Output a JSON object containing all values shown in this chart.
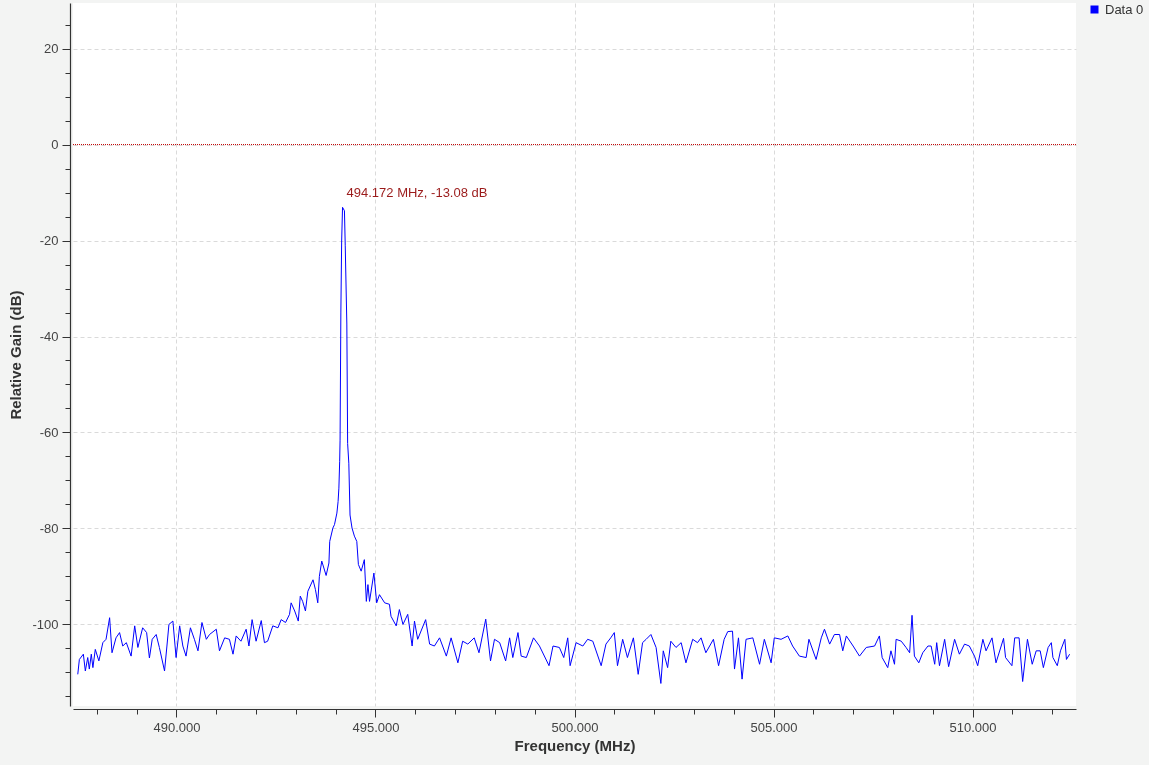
{
  "chart_data": {
    "type": "line",
    "xlabel": "Frequency (MHz)",
    "ylabel": "Relative Gain (dB)",
    "xlim": [
      487.4,
      512.6
    ],
    "ylim": [
      -117,
      29.5
    ],
    "xticks": [
      {
        "value": 488,
        "label": null
      },
      {
        "value": 489,
        "label": null
      },
      {
        "value": 490,
        "label": "490.000"
      },
      {
        "value": 491,
        "label": null
      },
      {
        "value": 492,
        "label": null
      },
      {
        "value": 493,
        "label": null
      },
      {
        "value": 494,
        "label": null
      },
      {
        "value": 495,
        "label": "495.000"
      },
      {
        "value": 496,
        "label": null
      },
      {
        "value": 497,
        "label": null
      },
      {
        "value": 498,
        "label": null
      },
      {
        "value": 499,
        "label": null
      },
      {
        "value": 500,
        "label": "500.000"
      },
      {
        "value": 501,
        "label": null
      },
      {
        "value": 502,
        "label": null
      },
      {
        "value": 503,
        "label": null
      },
      {
        "value": 504,
        "label": null
      },
      {
        "value": 505,
        "label": "505.000"
      },
      {
        "value": 506,
        "label": null
      },
      {
        "value": 507,
        "label": null
      },
      {
        "value": 508,
        "label": null
      },
      {
        "value": 509,
        "label": null
      },
      {
        "value": 510,
        "label": "510.000"
      },
      {
        "value": 511,
        "label": null
      },
      {
        "value": 512,
        "label": null
      }
    ],
    "yticks": [
      {
        "value": -115,
        "label": null
      },
      {
        "value": -110,
        "label": null
      },
      {
        "value": -105,
        "label": null
      },
      -100,
      {
        "value": -95,
        "label": null
      },
      {
        "value": -90,
        "label": null
      },
      {
        "value": -85,
        "label": null
      },
      -80,
      {
        "value": -75,
        "label": null
      },
      {
        "value": -70,
        "label": null
      },
      {
        "value": -65,
        "label": null
      },
      -60,
      {
        "value": -55,
        "label": null
      },
      {
        "value": -50,
        "label": null
      },
      {
        "value": -45,
        "label": null
      },
      -40,
      {
        "value": -35,
        "label": null
      },
      {
        "value": -30,
        "label": null
      },
      {
        "value": -25,
        "label": null
      },
      -20,
      {
        "value": -15,
        "label": null
      },
      {
        "value": -10,
        "label": null
      },
      {
        "value": -5,
        "label": null
      },
      0,
      {
        "value": 5,
        "label": null
      },
      {
        "value": 10,
        "label": null
      },
      {
        "value": 15,
        "label": null
      },
      20,
      {
        "value": 25,
        "label": null
      }
    ],
    "grid": true,
    "legend": "top right",
    "ref_lines": [
      {
        "axis": "y",
        "value": 0,
        "color": "#c00000",
        "line_style": "dotted"
      }
    ],
    "annotations": [
      {
        "text": "494.172 MHz, -13.08 dB",
        "x": 494.172,
        "y": -13.08
      }
    ],
    "x": [
      487.52,
      487.56,
      487.66,
      487.71,
      487.77,
      487.81,
      487.86,
      487.9,
      487.96,
      488.05,
      488.15,
      488.23,
      488.32,
      488.38,
      488.48,
      488.57,
      488.65,
      488.74,
      488.86,
      488.95,
      489.03,
      489.15,
      489.25,
      489.32,
      489.39,
      489.49,
      489.57,
      489.7,
      489.76,
      489.81,
      489.91,
      489.99,
      490.08,
      490.16,
      490.24,
      490.35,
      490.45,
      490.54,
      490.64,
      490.75,
      490.83,
      491.0,
      491.08,
      491.21,
      491.33,
      491.42,
      491.5,
      491.62,
      491.75,
      491.82,
      491.9,
      492.0,
      492.13,
      492.21,
      492.29,
      492.42,
      492.55,
      492.63,
      492.74,
      492.84,
      492.88,
      492.97,
      493.06,
      493.11,
      493.17,
      493.24,
      493.3,
      493.43,
      493.49,
      493.55,
      493.59,
      493.65,
      493.76,
      493.83,
      493.85,
      493.93,
      493.97,
      494.03,
      494.06,
      494.08,
      494.1,
      494.11,
      494.13,
      494.15,
      494.172,
      494.22,
      494.24,
      494.28,
      494.3,
      494.33,
      494.36,
      494.41,
      494.47,
      494.53,
      494.57,
      494.64,
      494.72,
      494.77,
      494.81,
      494.85,
      494.96,
      495.03,
      495.1,
      495.23,
      495.35,
      495.39,
      495.52,
      495.6,
      495.69,
      495.81,
      495.92,
      495.98,
      496.06,
      496.26,
      496.36,
      496.48,
      496.61,
      496.78,
      496.9,
      497.07,
      497.19,
      497.32,
      497.48,
      497.6,
      497.77,
      497.89,
      497.99,
      498.12,
      498.27,
      498.37,
      498.45,
      498.58,
      498.66,
      498.79,
      498.97,
      499.12,
      499.36,
      499.46,
      499.62,
      499.73,
      499.83,
      499.89,
      500.04,
      500.21,
      500.33,
      500.46,
      500.67,
      500.79,
      500.91,
      501.0,
      501.08,
      501.21,
      501.33,
      501.48,
      501.6,
      501.71,
      501.8,
      501.92,
      502.05,
      502.17,
      502.23,
      502.34,
      502.42,
      502.55,
      502.68,
      502.8,
      502.97,
      503.09,
      503.18,
      503.3,
      503.49,
      503.62,
      503.76,
      503.85,
      503.97,
      504.02,
      504.12,
      504.21,
      504.31,
      504.48,
      504.65,
      504.77,
      504.94,
      505.02,
      505.19,
      505.36,
      505.48,
      505.65,
      505.82,
      505.89,
      506.07,
      506.2,
      506.28,
      506.41,
      506.53,
      506.66,
      506.74,
      506.83,
      507.0,
      507.16,
      507.33,
      507.54,
      507.66,
      507.73,
      507.87,
      507.95,
      508.04,
      508.08,
      508.21,
      508.33,
      508.42,
      508.48,
      508.54,
      508.65,
      508.75,
      508.88,
      508.96,
      509.05,
      509.1,
      509.17,
      509.3,
      509.4,
      509.55,
      509.67,
      509.8,
      509.92,
      510.05,
      510.13,
      510.26,
      510.34,
      510.49,
      510.59,
      510.78,
      510.83,
      510.99,
      511.06,
      511.17,
      511.26,
      511.38,
      511.5,
      511.6,
      511.7,
      511.78,
      511.9,
      511.98,
      512.02,
      512.13,
      512.21,
      512.32,
      512.36,
      512.44
    ],
    "series": [
      {
        "name": "Data 0",
        "color": "#0000ff",
        "values": [
          -110.4,
          -107.3,
          -106.2,
          -109.7,
          -106.9,
          -109.3,
          -106.2,
          -109.0,
          -105.2,
          -107.6,
          -103.8,
          -103.1,
          -98.6,
          -105.9,
          -102.8,
          -101.7,
          -104.5,
          -103.8,
          -106.6,
          -100.3,
          -104.8,
          -100.7,
          -101.7,
          -107.0,
          -103.1,
          -102.1,
          -104.8,
          -109.7,
          -104.5,
          -100.0,
          -99.3,
          -106.9,
          -100.3,
          -104.5,
          -106.6,
          -100.7,
          -103.1,
          -105.5,
          -99.6,
          -103.1,
          -102.1,
          -101.0,
          -105.5,
          -102.8,
          -103.1,
          -106.2,
          -102.4,
          -103.5,
          -101.0,
          -104.5,
          -99.0,
          -103.5,
          -99.2,
          -103.8,
          -103.5,
          -100.3,
          -100.7,
          -99.0,
          -99.6,
          -97.9,
          -95.5,
          -97.2,
          -99.3,
          -94.1,
          -95.2,
          -97.2,
          -93.1,
          -90.7,
          -92.7,
          -95.5,
          -90.0,
          -86.8,
          -89.8,
          -87.2,
          -82.7,
          -79.9,
          -79.2,
          -76.8,
          -74.4,
          -71.6,
          -66.1,
          -61.6,
          -34.9,
          -20.1,
          -13.08,
          -13.8,
          -21.1,
          -37.4,
          -62.3,
          -66.4,
          -77.2,
          -79.9,
          -81.6,
          -82.7,
          -87.5,
          -88.9,
          -86.5,
          -95.2,
          -91.7,
          -95.2,
          -89.3,
          -95.5,
          -93.8,
          -95.5,
          -95.8,
          -98.3,
          -100.3,
          -96.9,
          -100.0,
          -97.9,
          -104.5,
          -99.3,
          -103.1,
          -99.0,
          -104.1,
          -104.5,
          -102.8,
          -106.6,
          -102.8,
          -108.0,
          -103.5,
          -104.1,
          -102.8,
          -105.9,
          -98.9,
          -107.6,
          -103.1,
          -103.8,
          -107.6,
          -102.8,
          -106.9,
          -101.7,
          -106.6,
          -106.9,
          -102.8,
          -104.5,
          -108.6,
          -104.5,
          -104.8,
          -106.9,
          -102.8,
          -108.6,
          -103.8,
          -104.5,
          -103.1,
          -103.5,
          -108.6,
          -104.1,
          -102.8,
          -101.7,
          -108.6,
          -103.1,
          -106.9,
          -102.8,
          -110.4,
          -103.8,
          -103.1,
          -102.1,
          -104.8,
          -112.3,
          -105.5,
          -109.0,
          -103.5,
          -104.8,
          -103.8,
          -108.0,
          -103.1,
          -103.8,
          -102.8,
          -105.9,
          -103.1,
          -108.6,
          -103.1,
          -101.5,
          -101.4,
          -109.3,
          -102.8,
          -111.4,
          -103.1,
          -102.8,
          -108.3,
          -103.1,
          -108.0,
          -102.8,
          -103.1,
          -102.4,
          -104.5,
          -106.6,
          -106.9,
          -103.1,
          -107.3,
          -102.8,
          -101.0,
          -104.1,
          -102.1,
          -102.1,
          -105.5,
          -102.4,
          -104.5,
          -106.6,
          -104.8,
          -104.5,
          -102.4,
          -106.9,
          -109.0,
          -105.5,
          -108.3,
          -103.1,
          -103.5,
          -104.8,
          -105.9,
          -98.1,
          -106.6,
          -108.0,
          -105.9,
          -104.5,
          -104.5,
          -108.3,
          -103.8,
          -108.6,
          -103.1,
          -108.8,
          -103.1,
          -106.2,
          -104.1,
          -104.5,
          -106.6,
          -108.6,
          -103.1,
          -105.5,
          -102.8,
          -108.0,
          -102.9,
          -106.9,
          -108.6,
          -102.8,
          -102.8,
          -111.9,
          -103.1,
          -108.3,
          -105.5,
          -105.5,
          -109.0,
          -104.8,
          -103.8,
          -106.9,
          -108.6,
          -105.5,
          -103.1,
          -107.3,
          -106.2
        ]
      }
    ]
  }
}
